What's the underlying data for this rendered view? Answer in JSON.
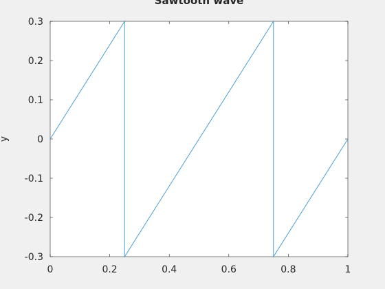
{
  "chart_data": {
    "type": "line",
    "title": "Sawtooth wave",
    "xlabel": "",
    "ylabel": "y",
    "xlim": [
      0,
      1
    ],
    "ylim": [
      -0.3,
      0.3
    ],
    "grid": false,
    "x_ticks": [
      "0",
      "0.2",
      "0.4",
      "0.6",
      "0.8",
      "1"
    ],
    "y_ticks": [
      "0.3",
      "0.2",
      "0.1",
      "0",
      "-0.1",
      "-0.2",
      "-0.3"
    ],
    "series": [
      {
        "color": "#4a9fd0",
        "x": [
          0,
          0.25,
          0.25,
          0.75,
          0.75,
          1
        ],
        "y": [
          0,
          0.3,
          -0.3,
          0.3,
          -0.3,
          0
        ]
      }
    ]
  }
}
